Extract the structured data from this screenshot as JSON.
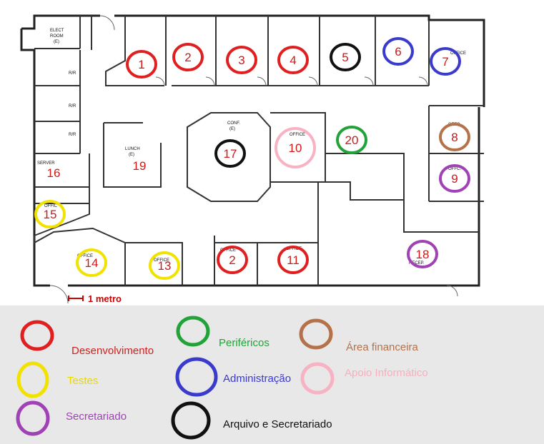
{
  "plan": {
    "room_labels": {
      "elect": "ELECT",
      "elect2": "ROOM",
      "elect3": "(E)",
      "server": "SERVER",
      "lunch": "LUNCH",
      "lunch2": "(E)",
      "conf": "CONF.",
      "conf2": "(E)",
      "recep": "RECEP.",
      "rr": "R/R",
      "office": "OFFICE",
      "offc": "OFFC.",
      "offic": "OFFIC"
    },
    "scale_label": "1 metro",
    "numbers": [
      "1",
      "2",
      "3",
      "4",
      "5",
      "6",
      "7",
      "8",
      "9",
      "10",
      "11",
      "2",
      "13",
      "14",
      "15",
      "16",
      "17",
      "18",
      "19",
      "20"
    ]
  },
  "legend": {
    "items": [
      {
        "label": "Desenvolvimento",
        "color": "#e02020"
      },
      {
        "label": "Periféricos",
        "color": "#22a33a"
      },
      {
        "label": "Área financeira",
        "color": "#b5714a"
      },
      {
        "label": "Testes",
        "color": "#f2e200"
      },
      {
        "label": "Administração",
        "color": "#3a3acc"
      },
      {
        "label": "Apoio Informático",
        "color": "#f7b3c3"
      },
      {
        "label": "Secretariado",
        "color": "#a042b5"
      },
      {
        "label": "Arquivo e Secretariado",
        "color": "#111111"
      }
    ]
  }
}
